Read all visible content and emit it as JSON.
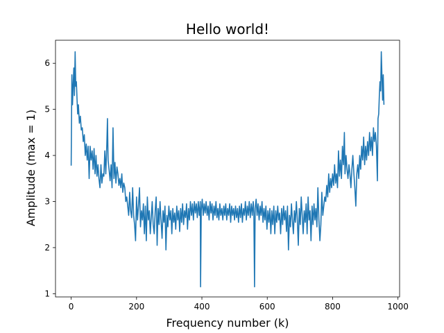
{
  "chart_data": {
    "type": "line",
    "title": "Hello world!",
    "xlabel": "Frequency number (k)",
    "ylabel": "Amplitude (max = 1)",
    "xlim": [
      -48,
      1005
    ],
    "ylim": [
      0.93,
      6.5
    ],
    "xticks": [
      0,
      200,
      400,
      600,
      800,
      1000
    ],
    "yticks": [
      1,
      2,
      3,
      4,
      5,
      6
    ],
    "grid": false,
    "legend": "none",
    "series": [
      {
        "color": "#1f77b4",
        "points": [
          [
            0,
            3.78
          ],
          [
            2,
            5.75
          ],
          [
            4,
            5.1
          ],
          [
            6,
            5.5
          ],
          [
            8,
            5.9
          ],
          [
            10,
            5.3
          ],
          [
            12,
            6.25
          ],
          [
            14,
            5.5
          ],
          [
            16,
            5.6
          ],
          [
            18,
            5.2
          ],
          [
            20,
            4.9
          ],
          [
            22,
            5.1
          ],
          [
            25,
            4.7
          ],
          [
            28,
            4.85
          ],
          [
            31,
            4.55
          ],
          [
            34,
            4.6
          ],
          [
            37,
            4.3
          ],
          [
            40,
            4.45
          ],
          [
            43,
            4.0
          ],
          [
            46,
            4.25
          ],
          [
            49,
            3.9
          ],
          [
            52,
            4.2
          ],
          [
            55,
            3.5
          ],
          [
            58,
            4.2
          ],
          [
            61,
            3.9
          ],
          [
            64,
            4.1
          ],
          [
            67,
            3.7
          ],
          [
            70,
            4.15
          ],
          [
            73,
            3.6
          ],
          [
            76,
            4.0
          ],
          [
            79,
            3.55
          ],
          [
            82,
            3.8
          ],
          [
            85,
            3.5
          ],
          [
            88,
            3.3
          ],
          [
            91,
            3.8
          ],
          [
            94,
            3.4
          ],
          [
            97,
            3.6
          ],
          [
            100,
            3.55
          ],
          [
            103,
            4.1
          ],
          [
            106,
            3.6
          ],
          [
            109,
            4.25
          ],
          [
            111,
            4.8
          ],
          [
            113,
            3.9
          ],
          [
            116,
            3.7
          ],
          [
            119,
            3.45
          ],
          [
            122,
            3.8
          ],
          [
            125,
            3.3
          ],
          [
            128,
            4.6
          ],
          [
            131,
            3.5
          ],
          [
            134,
            3.85
          ],
          [
            137,
            3.4
          ],
          [
            140,
            3.75
          ],
          [
            143,
            3.6
          ],
          [
            146,
            3.35
          ],
          [
            149,
            3.5
          ],
          [
            152,
            3.3
          ],
          [
            155,
            3.6
          ],
          [
            158,
            3.2
          ],
          [
            161,
            3.4
          ],
          [
            164,
            3.3
          ],
          [
            167,
            3.0
          ],
          [
            170,
            3.1
          ],
          [
            173,
            2.9
          ],
          [
            176,
            2.7
          ],
          [
            179,
            3.2
          ],
          [
            182,
            2.8
          ],
          [
            185,
            2.65
          ],
          [
            188,
            3.3
          ],
          [
            191,
            2.7
          ],
          [
            194,
            2.5
          ],
          [
            197,
            2.15
          ],
          [
            200,
            3.1
          ],
          [
            203,
            2.6
          ],
          [
            206,
            2.9
          ],
          [
            209,
            3.3
          ],
          [
            212,
            2.45
          ],
          [
            215,
            2.8
          ],
          [
            218,
            2.6
          ],
          [
            221,
            2.95
          ],
          [
            224,
            2.3
          ],
          [
            227,
            2.9
          ],
          [
            230,
            2.15
          ],
          [
            233,
            3.1
          ],
          [
            236,
            2.6
          ],
          [
            239,
            2.8
          ],
          [
            242,
            2.3
          ],
          [
            245,
            2.65
          ],
          [
            248,
            3.0
          ],
          [
            251,
            2.5
          ],
          [
            254,
            2.3
          ],
          [
            257,
            2.8
          ],
          [
            260,
            3.1
          ],
          [
            263,
            2.05
          ],
          [
            266,
            2.85
          ],
          [
            269,
            2.5
          ],
          [
            272,
            3.0
          ],
          [
            275,
            2.6
          ],
          [
            278,
            2.2
          ],
          [
            281,
            2.8
          ],
          [
            284,
            2.55
          ],
          [
            287,
            2.9
          ],
          [
            290,
            1.95
          ],
          [
            293,
            2.7
          ],
          [
            296,
            2.45
          ],
          [
            299,
            2.9
          ],
          [
            302,
            2.6
          ],
          [
            305,
            2.8
          ],
          [
            308,
            2.3
          ],
          [
            311,
            2.85
          ],
          [
            314,
            2.55
          ],
          [
            317,
            2.75
          ],
          [
            320,
            2.4
          ],
          [
            323,
            2.9
          ],
          [
            326,
            2.6
          ],
          [
            329,
            2.8
          ],
          [
            332,
            2.35
          ],
          [
            335,
            2.85
          ],
          [
            338,
            2.55
          ],
          [
            341,
            2.95
          ],
          [
            344,
            2.5
          ],
          [
            347,
            2.8
          ],
          [
            350,
            2.65
          ],
          [
            353,
            2.95
          ],
          [
            356,
            2.4
          ],
          [
            359,
            2.85
          ],
          [
            362,
            2.6
          ],
          [
            365,
            3.0
          ],
          [
            368,
            2.7
          ],
          [
            371,
            2.95
          ],
          [
            374,
            2.6
          ],
          [
            377,
            3.0
          ],
          [
            380,
            2.75
          ],
          [
            383,
            2.95
          ],
          [
            386,
            2.65
          ],
          [
            389,
            3.0
          ],
          [
            392,
            2.7
          ],
          [
            395,
            3.0
          ],
          [
            396,
            1.15
          ],
          [
            398,
            2.8
          ],
          [
            401,
            3.05
          ],
          [
            404,
            2.7
          ],
          [
            407,
            2.95
          ],
          [
            410,
            2.75
          ],
          [
            413,
            3.0
          ],
          [
            416,
            2.7
          ],
          [
            419,
            2.9
          ],
          [
            422,
            2.6
          ],
          [
            425,
            3.0
          ],
          [
            428,
            2.75
          ],
          [
            431,
            2.95
          ],
          [
            434,
            2.6
          ],
          [
            437,
            2.9
          ],
          [
            440,
            2.7
          ],
          [
            443,
            3.0
          ],
          [
            446,
            2.65
          ],
          [
            449,
            2.85
          ],
          [
            452,
            2.6
          ],
          [
            455,
            2.95
          ],
          [
            458,
            2.7
          ],
          [
            461,
            2.85
          ],
          [
            464,
            2.6
          ],
          [
            467,
            2.9
          ],
          [
            470,
            2.7
          ],
          [
            473,
            2.95
          ],
          [
            476,
            2.6
          ],
          [
            479,
            2.85
          ],
          [
            482,
            2.7
          ],
          [
            485,
            2.95
          ],
          [
            488,
            2.55
          ],
          [
            491,
            2.9
          ],
          [
            494,
            2.7
          ],
          [
            497,
            2.85
          ],
          [
            500,
            2.6
          ],
          [
            503,
            2.9
          ],
          [
            506,
            2.65
          ],
          [
            509,
            2.85
          ],
          [
            512,
            2.55
          ],
          [
            515,
            2.9
          ],
          [
            518,
            2.65
          ],
          [
            521,
            2.95
          ],
          [
            524,
            2.55
          ],
          [
            527,
            2.85
          ],
          [
            530,
            2.7
          ],
          [
            533,
            3.0
          ],
          [
            536,
            2.6
          ],
          [
            539,
            2.9
          ],
          [
            542,
            2.7
          ],
          [
            545,
            3.0
          ],
          [
            548,
            2.65
          ],
          [
            551,
            2.95
          ],
          [
            554,
            2.7
          ],
          [
            557,
            3.0
          ],
          [
            559,
            2.75
          ],
          [
            561,
            1.15
          ],
          [
            563,
            2.85
          ],
          [
            566,
            3.05
          ],
          [
            569,
            2.7
          ],
          [
            572,
            2.95
          ],
          [
            575,
            2.6
          ],
          [
            578,
            2.9
          ],
          [
            581,
            2.7
          ],
          [
            584,
            3.0
          ],
          [
            587,
            2.55
          ],
          [
            590,
            2.85
          ],
          [
            593,
            2.6
          ],
          [
            596,
            2.9
          ],
          [
            599,
            2.4
          ],
          [
            602,
            2.8
          ],
          [
            605,
            2.55
          ],
          [
            608,
            2.85
          ],
          [
            611,
            2.3
          ],
          [
            614,
            2.8
          ],
          [
            617,
            2.5
          ],
          [
            620,
            2.9
          ],
          [
            623,
            2.3
          ],
          [
            626,
            2.8
          ],
          [
            629,
            2.55
          ],
          [
            632,
            2.9
          ],
          [
            635,
            2.6
          ],
          [
            638,
            2.75
          ],
          [
            641,
            2.3
          ],
          [
            644,
            2.85
          ],
          [
            647,
            2.5
          ],
          [
            650,
            2.9
          ],
          [
            653,
            2.6
          ],
          [
            656,
            2.8
          ],
          [
            659,
            2.35
          ],
          [
            662,
            2.9
          ],
          [
            665,
            1.95
          ],
          [
            668,
            2.7
          ],
          [
            671,
            2.45
          ],
          [
            674,
            2.95
          ],
          [
            677,
            2.6
          ],
          [
            680,
            2.3
          ],
          [
            683,
            2.8
          ],
          [
            686,
            2.55
          ],
          [
            689,
            3.0
          ],
          [
            692,
            2.6
          ],
          [
            695,
            2.05
          ],
          [
            698,
            2.85
          ],
          [
            701,
            2.5
          ],
          [
            704,
            3.1
          ],
          [
            707,
            2.7
          ],
          [
            710,
            2.3
          ],
          [
            713,
            2.8
          ],
          [
            716,
            2.55
          ],
          [
            719,
            2.95
          ],
          [
            722,
            2.3
          ],
          [
            725,
            3.1
          ],
          [
            728,
            2.6
          ],
          [
            731,
            2.8
          ],
          [
            734,
            2.15
          ],
          [
            737,
            2.9
          ],
          [
            740,
            2.5
          ],
          [
            743,
            2.95
          ],
          [
            746,
            2.6
          ],
          [
            749,
            2.85
          ],
          [
            752,
            2.45
          ],
          [
            755,
            3.3
          ],
          [
            758,
            2.6
          ],
          [
            761,
            2.15
          ],
          [
            764,
            2.5
          ],
          [
            767,
            3.2
          ],
          [
            770,
            2.7
          ],
          [
            773,
            2.9
          ],
          [
            776,
            3.1
          ],
          [
            779,
            3.0
          ],
          [
            782,
            3.35
          ],
          [
            785,
            3.1
          ],
          [
            788,
            3.6
          ],
          [
            791,
            3.2
          ],
          [
            794,
            3.5
          ],
          [
            797,
            3.3
          ],
          [
            800,
            3.6
          ],
          [
            803,
            3.35
          ],
          [
            806,
            3.8
          ],
          [
            809,
            3.4
          ],
          [
            812,
            3.6
          ],
          [
            815,
            3.3
          ],
          [
            818,
            4.1
          ],
          [
            821,
            3.55
          ],
          [
            824,
            3.9
          ],
          [
            827,
            3.5
          ],
          [
            830,
            4.2
          ],
          [
            833,
            3.8
          ],
          [
            836,
            4.5
          ],
          [
            838,
            3.6
          ],
          [
            841,
            4.0
          ],
          [
            844,
            3.7
          ],
          [
            847,
            3.5
          ],
          [
            850,
            3.8
          ],
          [
            853,
            3.6
          ],
          [
            856,
            3.3
          ],
          [
            859,
            3.7
          ],
          [
            862,
            4.0
          ],
          [
            865,
            3.6
          ],
          [
            868,
            3.3
          ],
          [
            871,
            2.9
          ],
          [
            874,
            3.6
          ],
          [
            877,
            3.8
          ],
          [
            880,
            3.5
          ],
          [
            883,
            4.0
          ],
          [
            886,
            3.7
          ],
          [
            889,
            4.2
          ],
          [
            892,
            3.9
          ],
          [
            895,
            4.4
          ],
          [
            898,
            3.8
          ],
          [
            901,
            4.2
          ],
          [
            904,
            3.9
          ],
          [
            907,
            4.3
          ],
          [
            910,
            4.0
          ],
          [
            913,
            4.5
          ],
          [
            916,
            4.1
          ],
          [
            919,
            4.4
          ],
          [
            922,
            4.0
          ],
          [
            925,
            4.6
          ],
          [
            928,
            4.3
          ],
          [
            931,
            4.5
          ],
          [
            934,
            4.2
          ],
          [
            937,
            3.45
          ],
          [
            939,
            4.8
          ],
          [
            941,
            4.9
          ],
          [
            943,
            5.3
          ],
          [
            945,
            5.6
          ],
          [
            947,
            5.4
          ],
          [
            949,
            6.25
          ],
          [
            951,
            5.7
          ],
          [
            953,
            5.2
          ],
          [
            955,
            5.75
          ],
          [
            957,
            5.1
          ]
        ]
      }
    ]
  }
}
